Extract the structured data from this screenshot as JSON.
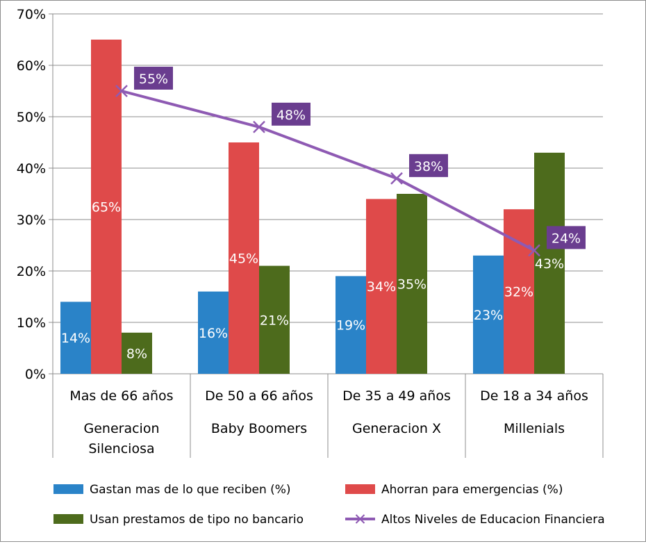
{
  "chart_data": {
    "type": "bar",
    "categories": [
      [
        "Mas de 66 años",
        "Generacion",
        "Silenciosa"
      ],
      [
        "De 50 a 66 años",
        "Baby Boomers"
      ],
      [
        "De 35 a 49 años",
        "Generacion X"
      ],
      [
        "De 18 a 34 años",
        "Millenials"
      ]
    ],
    "y_ticks": [
      "0%",
      "10%",
      "20%",
      "30%",
      "40%",
      "50%",
      "60%",
      "70%"
    ],
    "ylim": [
      0,
      70
    ],
    "grid": true,
    "legend_position": "bottom",
    "series": [
      {
        "name": "Gastan mas de lo que reciben (%)",
        "type": "bar",
        "color": "#2a83c8",
        "values": [
          14,
          16,
          19,
          23
        ],
        "labels": [
          "14%",
          "16%",
          "19%",
          "23%"
        ]
      },
      {
        "name": "Ahorran para emergencias (%)",
        "type": "bar",
        "color": "#df4a4a",
        "values": [
          65,
          45,
          34,
          32
        ],
        "labels": [
          "65%",
          "45%",
          "34%",
          "32%"
        ]
      },
      {
        "name": "Usan prestamos de tipo no bancario",
        "type": "bar",
        "color": "#4d6b1c",
        "values": [
          8,
          21,
          35,
          43
        ],
        "labels": [
          "8%",
          "21%",
          "35%",
          "43%"
        ]
      },
      {
        "name": "Altos Niveles de Educacion Financiera",
        "type": "line",
        "color": "#8e5ab3",
        "label_bg": "#6a3d8f",
        "values": [
          55,
          48,
          38,
          24
        ],
        "labels": [
          "55%",
          "48%",
          "38%",
          "24%"
        ]
      }
    ]
  }
}
